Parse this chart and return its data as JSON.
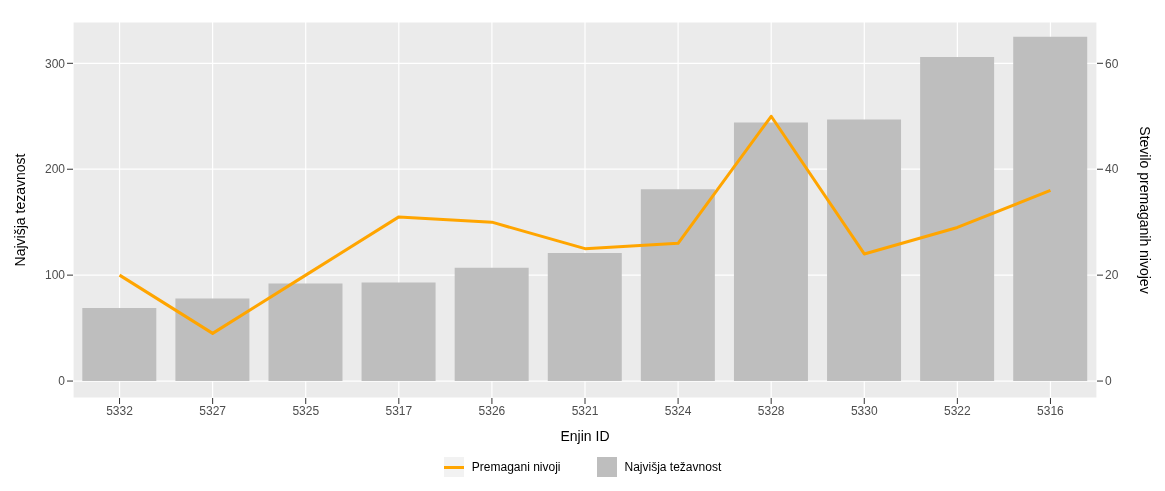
{
  "chart_data": {
    "type": "bar",
    "xlabel": "Enjin ID",
    "ylabel": "Najvišja tezavnost",
    "y2label": "Stevilo premaganih nivojev",
    "categories": [
      "5332",
      "5327",
      "5325",
      "5317",
      "5326",
      "5321",
      "5324",
      "5328",
      "5330",
      "5322",
      "5316"
    ],
    "series": [
      {
        "name": "Premagani nivoji",
        "type": "line",
        "axis": "y2",
        "color": "#ffa500",
        "values": [
          20,
          9,
          20,
          31,
          30,
          25,
          26,
          50,
          24,
          29,
          36
        ]
      },
      {
        "name": "Najvišja težavnost",
        "color": "#bebebe",
        "values": [
          69,
          78,
          92,
          93,
          107,
          121,
          181,
          244,
          247,
          306,
          325
        ]
      }
    ],
    "ylim": [
      -16,
      339
    ],
    "yticks": [
      0,
      100,
      200,
      300
    ],
    "y2lim": [
      -3.2,
      67.8
    ],
    "y2ticks": [
      0,
      20,
      40,
      60
    ],
    "grid": true,
    "legend": "bottom",
    "marker": "none",
    "line_style": "solid"
  }
}
